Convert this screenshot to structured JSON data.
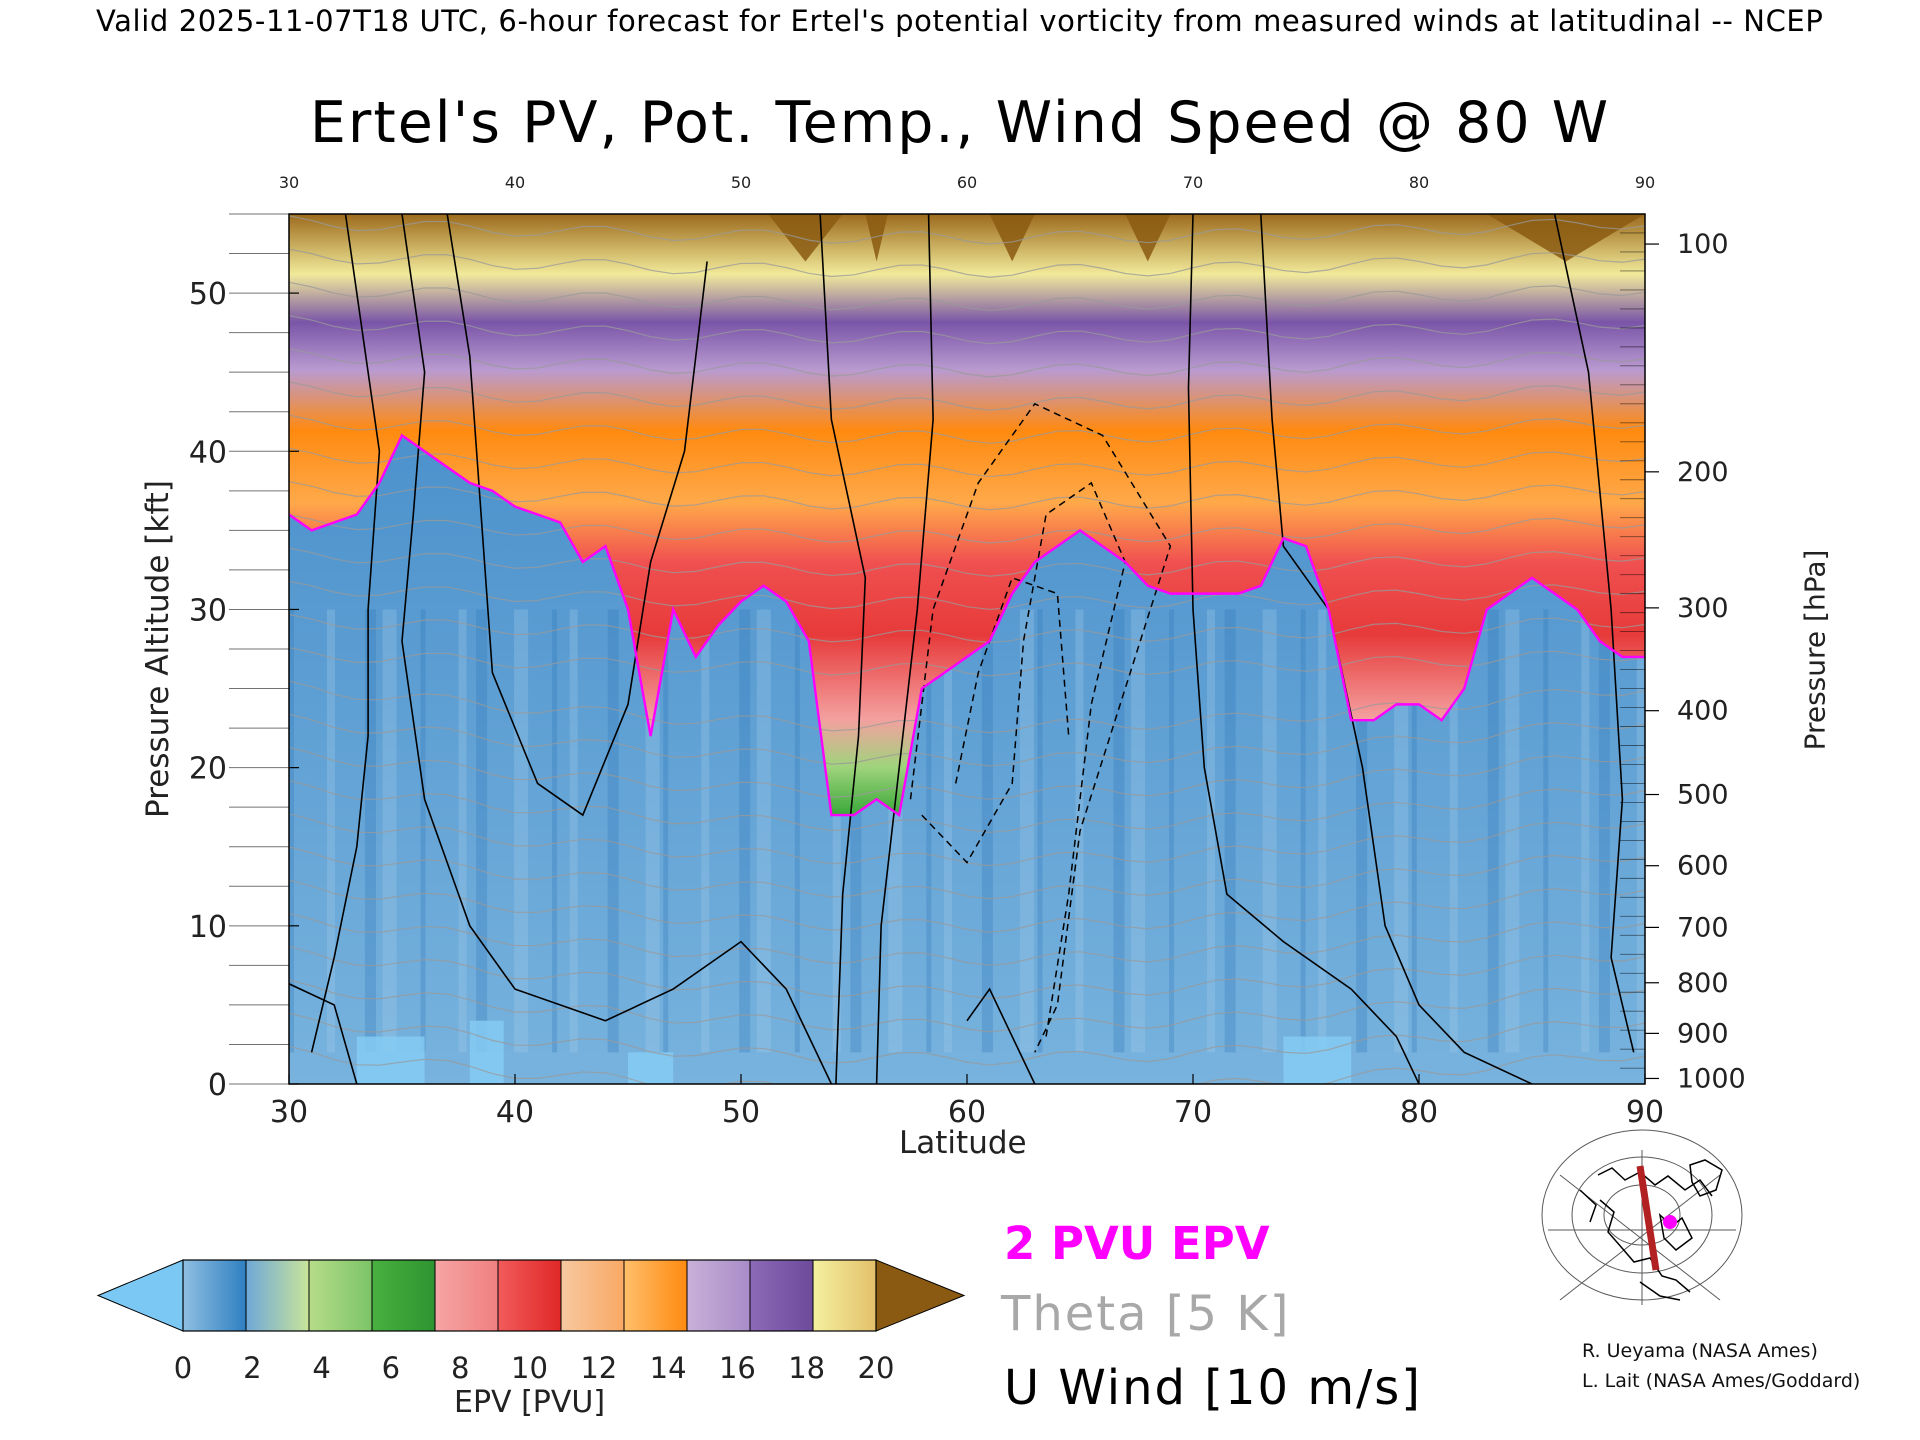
{
  "header": {
    "valid_line": "Valid 2025-11-07T18 UTC, 6-hour forecast for Ertel's potential vorticity from measured winds at latitudinal -- NCEP"
  },
  "chart_data": {
    "type": "heatmap",
    "title": "Ertel's PV, Pot. Temp., Wind Speed @ 80 W",
    "xlabel": "Latitude",
    "ylabel": "Pressure Altitude [kft]",
    "ylabel_right": "Pressure [hPa]",
    "xlim": [
      30,
      90
    ],
    "ylim": [
      0,
      55
    ],
    "x_ticks": [
      "30",
      "40",
      "50",
      "60",
      "70",
      "80",
      "90"
    ],
    "x_ticks_top": [
      "30",
      "40",
      "50",
      "60",
      "70",
      "80",
      "90"
    ],
    "y_ticks": [
      "0",
      "10",
      "20",
      "30",
      "40",
      "50"
    ],
    "pressure_ticks": [
      {
        "hpa": "1000",
        "kft": 0.35
      },
      {
        "hpa": "900",
        "kft": 3.2
      },
      {
        "hpa": "800",
        "kft": 6.4
      },
      {
        "hpa": "700",
        "kft": 9.9
      },
      {
        "hpa": "600",
        "kft": 13.8
      },
      {
        "hpa": "500",
        "kft": 18.3
      },
      {
        "hpa": "400",
        "kft": 23.6
      },
      {
        "hpa": "300",
        "kft": 30.1
      },
      {
        "hpa": "200",
        "kft": 38.7
      },
      {
        "hpa": "100",
        "kft": 53.1
      }
    ],
    "series": [
      {
        "name": "2 PVU EPV",
        "color": "#ff00ff",
        "x": [
          30,
          31,
          33,
          34,
          35,
          36,
          37,
          38,
          39,
          40,
          41,
          42,
          43,
          44,
          45,
          46,
          47,
          48,
          49,
          50,
          51,
          52,
          53,
          54,
          55,
          56,
          57,
          58,
          59,
          60,
          61,
          62,
          63,
          64,
          65,
          66,
          67,
          68,
          69,
          70,
          71,
          72,
          73,
          74,
          75,
          76,
          77,
          78,
          79,
          80,
          81,
          82,
          83,
          84,
          85,
          86,
          87,
          88,
          89,
          90
        ],
        "y": [
          36,
          35,
          36,
          38,
          41,
          40,
          39,
          38,
          37.5,
          36.5,
          36,
          35.5,
          33,
          34,
          30,
          22,
          30,
          27,
          29,
          30.5,
          31.5,
          30.5,
          28,
          17,
          17,
          18,
          17,
          25,
          26,
          27,
          28,
          31,
          33,
          34,
          35,
          34,
          33,
          31.5,
          31,
          31,
          31,
          31,
          31.5,
          34.5,
          34,
          30,
          23,
          23,
          24,
          24,
          23,
          25,
          30,
          31,
          32,
          31,
          30,
          28,
          27,
          27
        ]
      }
    ],
    "contour_labels": {
      "theta": "Theta [5 K]",
      "u_wind": "U Wind [10 m/s]"
    },
    "colorbar": {
      "label": "EPV [PVU]",
      "ticks": [
        "0",
        "2",
        "4",
        "6",
        "8",
        "10",
        "12",
        "14",
        "16",
        "18",
        "20"
      ],
      "under_color": "#7cc8f5",
      "over_color": "#8a5a12",
      "colors": [
        [
          "#8fbfe2",
          "#2f7fc1"
        ],
        [
          "#6fa8d8",
          "#c9e49a"
        ],
        [
          "#b7dc8a",
          "#7bc467"
        ],
        [
          "#49b040",
          "#2e9431"
        ],
        [
          "#f6a5a5",
          "#f08080"
        ],
        [
          "#f25b5b",
          "#e02828"
        ],
        [
          "#f6c8a0",
          "#f9a964"
        ],
        [
          "#ffbf6b",
          "#ff8a10"
        ],
        [
          "#c8b1d8",
          "#a98cc8"
        ],
        [
          "#8d6ab8",
          "#6d4a9a"
        ],
        [
          "#f4f0a0",
          "#e3c06a"
        ]
      ]
    }
  },
  "legend": {
    "pvu": "2 PVU EPV",
    "theta": "Theta [5 K]",
    "uwind": "U Wind [10 m/s]"
  },
  "credits": {
    "line1": "R. Ueyama (NASA Ames)",
    "line2": "L. Lait (NASA Ames/Goddard)"
  },
  "inset_map": {
    "description_icon": "globe-map-icon",
    "track_color": "#b22222",
    "marker_color": "#ff00ff"
  },
  "colors": {
    "upper_brown": "#8a5a12",
    "stratosphere_red": "#e02828",
    "tropopause_green": "#3aa83a",
    "troposphere_blue": "#5d9fd3"
  }
}
